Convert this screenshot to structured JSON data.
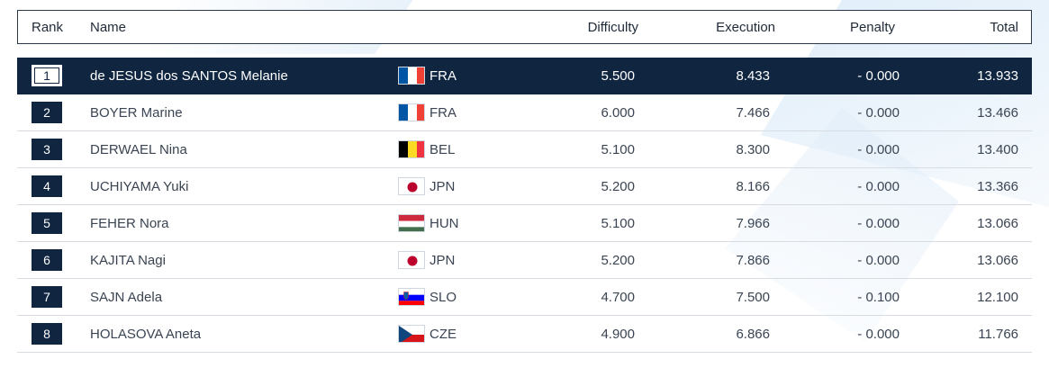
{
  "header": {
    "rank": "Rank",
    "name": "Name",
    "difficulty": "Difficulty",
    "execution": "Execution",
    "penalty": "Penalty",
    "total": "Total"
  },
  "rows": [
    {
      "rank": "1",
      "name": "de JESUS dos SANTOS Melanie",
      "country": "FRA",
      "flag": "fra-flag-icon",
      "difficulty": "5.500",
      "execution": "8.433",
      "penalty": "- 0.000",
      "total": "13.933"
    },
    {
      "rank": "2",
      "name": "BOYER Marine",
      "country": "FRA",
      "flag": "fra-flag-icon",
      "difficulty": "6.000",
      "execution": "7.466",
      "penalty": "- 0.000",
      "total": "13.466"
    },
    {
      "rank": "3",
      "name": "DERWAEL Nina",
      "country": "BEL",
      "flag": "bel-flag-icon",
      "difficulty": "5.100",
      "execution": "8.300",
      "penalty": "- 0.000",
      "total": "13.400"
    },
    {
      "rank": "4",
      "name": "UCHIYAMA Yuki",
      "country": "JPN",
      "flag": "jpn-flag-icon",
      "difficulty": "5.200",
      "execution": "8.166",
      "penalty": "- 0.000",
      "total": "13.366"
    },
    {
      "rank": "5",
      "name": "FEHER Nora",
      "country": "HUN",
      "flag": "hun-flag-icon",
      "difficulty": "5.100",
      "execution": "7.966",
      "penalty": "- 0.000",
      "total": "13.066"
    },
    {
      "rank": "6",
      "name": "KAJITA Nagi",
      "country": "JPN",
      "flag": "jpn-flag-icon",
      "difficulty": "5.200",
      "execution": "7.866",
      "penalty": "- 0.000",
      "total": "13.066"
    },
    {
      "rank": "7",
      "name": "SAJN Adela",
      "country": "SLO",
      "flag": "slo-flag-icon",
      "difficulty": "4.700",
      "execution": "7.500",
      "penalty": "- 0.100",
      "total": "12.100"
    },
    {
      "rank": "8",
      "name": "HOLASOVA Aneta",
      "country": "CZE",
      "flag": "cze-flag-icon",
      "difficulty": "4.900",
      "execution": "6.866",
      "penalty": "- 0.000",
      "total": "11.766"
    }
  ],
  "colors": {
    "accent": "#0f2540",
    "row_divider": "#d6dce2",
    "text": "#3a4452"
  }
}
